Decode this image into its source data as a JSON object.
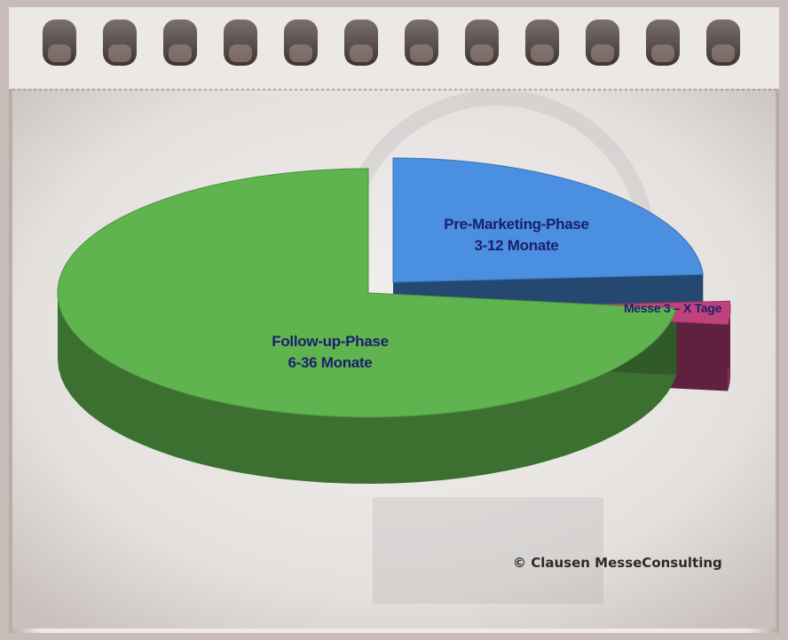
{
  "chart_data": {
    "type": "pie",
    "title": "",
    "slices": [
      {
        "label": "Pre-Marketing-Phase",
        "sublabel": "3-12 Monate",
        "value": 24,
        "color": "#4a8fe0"
      },
      {
        "label": "Messe 3 – X Tage",
        "sublabel": "",
        "value": 3,
        "color": "#c0427c"
      },
      {
        "label": "Follow-up-Phase",
        "sublabel": "6-36 Monate",
        "value": 73,
        "color": "#5fb44f"
      }
    ],
    "legend": "none",
    "style": "3d-exploded"
  },
  "copyright": "© Clausen MesseConsulting"
}
